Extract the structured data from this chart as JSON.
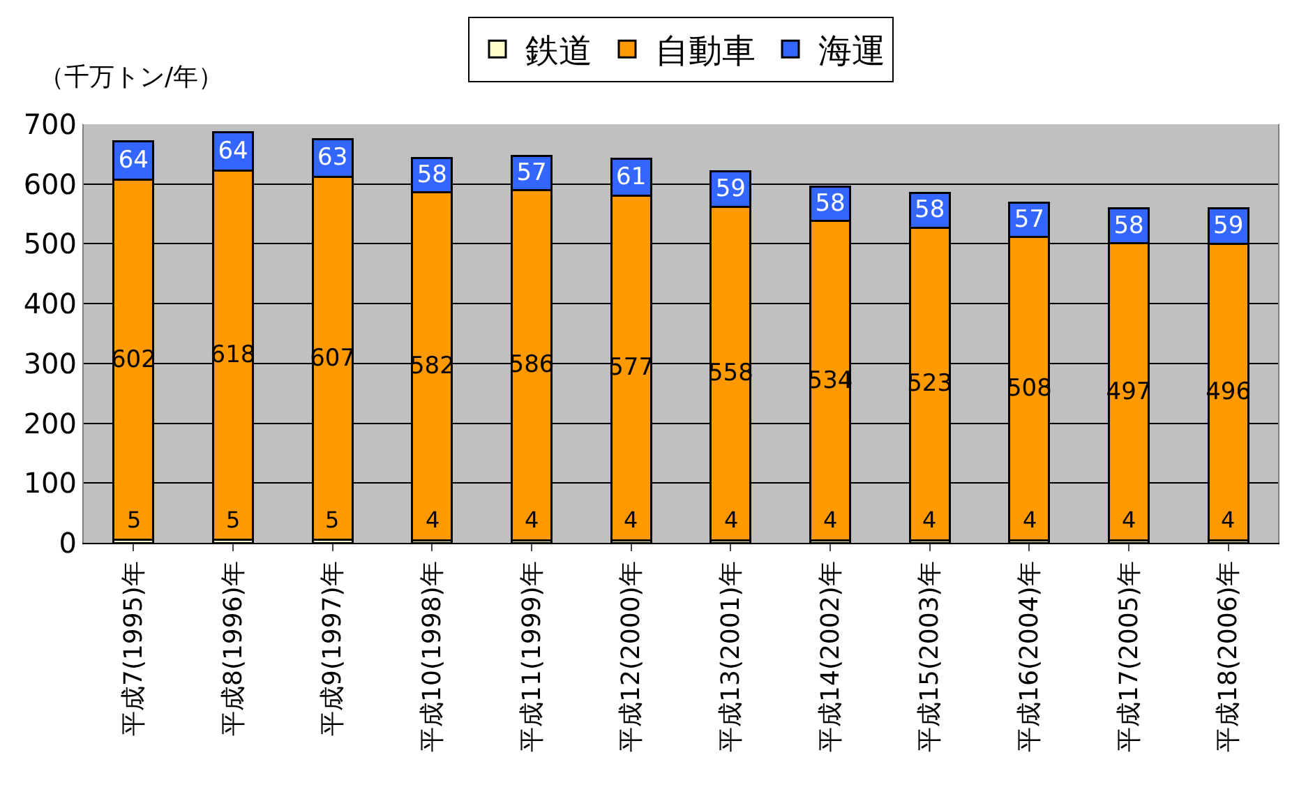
{
  "chart_data": {
    "type": "bar",
    "stacked": true,
    "ylabel": "（千万トン/年）",
    "categories": [
      "平成7(1995)年",
      "平成8(1996)年",
      "平成9(1997)年",
      "平成10(1998)年",
      "平成11(1999)年",
      "平成12(2000)年",
      "平成13(2001)年",
      "平成14(2002)年",
      "平成15(2003)年",
      "平成16(2004)年",
      "平成17(2005)年",
      "平成18(2006)年"
    ],
    "series": [
      {
        "name": "鉄道",
        "color": "#ffffcc",
        "values": [
          5,
          5,
          5,
          4,
          4,
          4,
          4,
          4,
          4,
          4,
          4,
          4
        ]
      },
      {
        "name": "自動車",
        "color": "#ff9900",
        "values": [
          602,
          618,
          607,
          582,
          586,
          577,
          558,
          534,
          523,
          508,
          497,
          496
        ]
      },
      {
        "name": "海運",
        "color": "#3366ff",
        "values": [
          64,
          64,
          63,
          58,
          57,
          61,
          59,
          58,
          58,
          57,
          58,
          59
        ]
      }
    ],
    "ylim": [
      0,
      700
    ],
    "yticks": [
      0,
      100,
      200,
      300,
      400,
      500,
      600,
      700
    ],
    "grid": "y",
    "legend": "top",
    "data_labels": true
  }
}
